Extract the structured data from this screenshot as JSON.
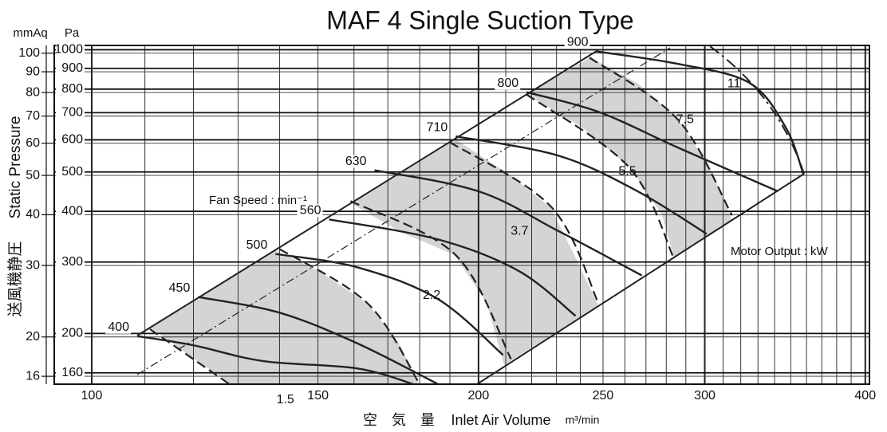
{
  "chart_data": {
    "type": "line",
    "title": "MAF  4    Single Suction Type",
    "y_label": "Static Pressure",
    "y_label_jp": "送風機静圧",
    "y_unit": "Pa",
    "y2_unit": "mmAq",
    "x_label_jp": "空　気　量",
    "x_label": "Inlet Air Volume",
    "x_unit": "m³/min",
    "speed_label": "Fan Speed : min⁻¹",
    "power_label": "Motor Output : kW",
    "log_x": true,
    "log_y": true,
    "grid": true,
    "xlim": [
      93.5,
      403
    ],
    "xticks": [
      100,
      150,
      200,
      250,
      300,
      400
    ],
    "xgrid": [
      100,
      110,
      120,
      130,
      140,
      150,
      160,
      170,
      180,
      190,
      200,
      210,
      220,
      230,
      240,
      250,
      260,
      270,
      280,
      290,
      300,
      310,
      320,
      330,
      340,
      350,
      360,
      370,
      380,
      390,
      400
    ],
    "ylim": [
      150,
      1025
    ],
    "yticks": [
      160,
      200,
      300,
      400,
      500,
      600,
      700,
      800,
      900,
      1000
    ],
    "y2lim": [
      15.3,
      104.5
    ],
    "y2ticks": [
      16,
      20,
      30,
      40,
      50,
      60,
      70,
      80,
      90,
      100
    ],
    "series": [
      {
        "name": "400",
        "color": "#222222",
        "x": [
          108.5,
          120,
          136,
          161,
          178
        ],
        "values": [
          197,
          187,
          171,
          164,
          150
        ]
      },
      {
        "name": "450",
        "color": "#222222",
        "x": [
          121,
          140,
          161,
          186
        ],
        "values": [
          246,
          225,
          189,
          150
        ]
      },
      {
        "name": "500",
        "color": "#222222",
        "x": [
          139,
          161,
          186,
          209
        ],
        "values": [
          314,
          291,
          243,
          177
        ]
      },
      {
        "name": "560",
        "color": "#222222",
        "x": [
          153,
          186,
          215,
          238
        ],
        "values": [
          382,
          341,
          285,
          221
        ]
      },
      {
        "name": "630",
        "color": "#222222",
        "x": [
          166,
          200,
          231,
          268
        ],
        "values": [
          505,
          448,
          357,
          278
        ]
      },
      {
        "name": "710",
        "color": "#222222",
        "x": [
          192,
          231,
          266,
          301
        ],
        "values": [
          612,
          548,
          448,
          352
        ]
      },
      {
        "name": "800",
        "color": "#222222",
        "x": [
          218,
          248,
          286,
          342
        ],
        "values": [
          786,
          703,
          574,
          448
        ]
      },
      {
        "name": "900",
        "color": "#222222",
        "x": [
          247,
          286,
          325,
          347,
          358
        ],
        "values": [
          991,
          923,
          829,
          642,
          494
        ]
      }
    ],
    "motor_output": [
      {
        "name": "1.5",
        "x": [
          111,
          128
        ],
        "values": [
          205,
          150
        ]
      },
      {
        "name": "2.2",
        "x": [
          140,
          164,
          180
        ],
        "values": [
          323,
          237,
          150
        ]
      },
      {
        "name": "3.7",
        "x": [
          159,
          192,
          212
        ],
        "values": [
          424,
          312,
          173
        ]
      },
      {
        "name": "5.5",
        "x": [
          190,
          228,
          248
        ],
        "values": [
          592,
          409,
          237
        ]
      },
      {
        "name": "7.5",
        "x": [
          218,
          262,
          284
        ],
        "values": [
          776,
          513,
          305
        ]
      },
      {
        "name": "11",
        "x": [
          244,
          286,
          315
        ],
        "values": [
          957,
          672,
          391
        ]
      }
    ]
  }
}
